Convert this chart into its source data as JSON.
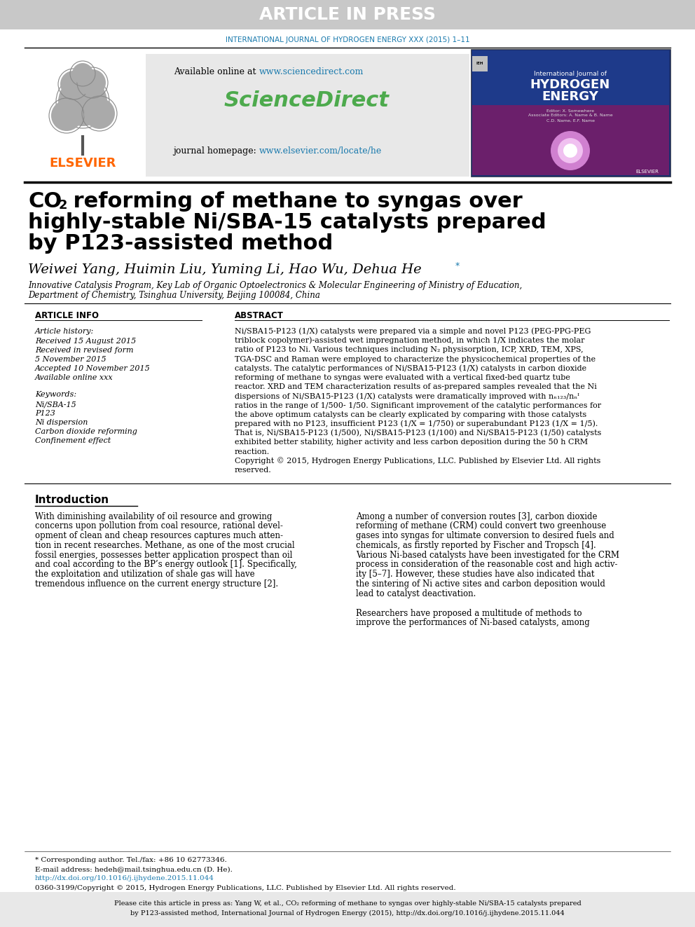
{
  "bg_color": "#ffffff",
  "header_bg": "#c8c8c8",
  "header_text": "ARTICLE IN PRESS",
  "header_text_color": "#ffffff",
  "journal_line": "INTERNATIONAL JOURNAL OF HYDROGEN ENERGY XXX (2015) 1–11",
  "journal_line_color": "#1a7aad",
  "elsevier_color": "#ff6600",
  "sciencedirect_color": "#4daa4d",
  "available_online_link_color": "#1a7aad",
  "journal_homepage_link_color": "#1a7aad",
  "paper_title_color": "#000000",
  "authors_color": "#000000",
  "affiliation1": "Innovative Catalysis Program, Key Lab of Organic Optoelectronics & Molecular Engineering of Ministry of Education,",
  "affiliation2": "Department of Chemistry, Tsinghua University, Beijing 100084, China",
  "affiliation_color": "#000000",
  "article_info_label": "ARTICLE INFO",
  "abstract_label": "ABSTRACT",
  "article_history_label": "Article history:",
  "received1": "Received 15 August 2015",
  "received2": "Received in revised form",
  "received2b": "5 November 2015",
  "accepted": "Accepted 10 November 2015",
  "available": "Available online xxx",
  "keywords_label": "Keywords:",
  "keyword1": "Ni/SBA-15",
  "keyword2": "P123",
  "keyword3": "Ni dispersion",
  "keyword4": "Carbon dioxide reforming",
  "keyword5": "Confinement effect",
  "copyright_text": "Copyright © 2015, Hydrogen Energy Publications, LLC. Published by Elsevier Ltd. All rights reserved.",
  "intro_title": "Introduction",
  "footnote_star": "* Corresponding author. Tel./fax: +86 10 62773346.",
  "footnote_email": "E-mail address: hedeh@mail.tsinghua.edu.cn (D. He).",
  "footnote_doi": "http://dx.doi.org/10.1016/j.ijhydene.2015.11.044",
  "footnote_issn": "0360-3199/Copyright © 2015, Hydrogen Energy Publications, LLC. Published by Elsevier Ltd. All rights reserved."
}
